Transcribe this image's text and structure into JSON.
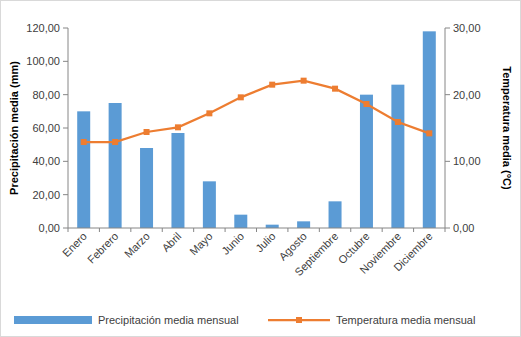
{
  "chart_data": {
    "type": "bar",
    "y_label": "Precipitación media (mm)",
    "y2_label": "Temperatura media (°C)",
    "categories": [
      "Enero",
      "Febrero",
      "Marzo",
      "Abril",
      "Mayo",
      "Junio",
      "Julio",
      "Agosto",
      "Septiembre",
      "Octubre",
      "Noviembre",
      "Diciembre"
    ],
    "series": [
      {
        "name": "Precipitación media mensual",
        "type": "bar",
        "color": "#5b9bd5",
        "values": [
          70,
          75,
          48,
          57,
          28,
          8,
          2,
          4,
          16,
          80,
          86,
          118
        ]
      },
      {
        "name": "Temperatura media mensual",
        "type": "line",
        "color": "#ed7d31",
        "marker": "square",
        "axis": "y2",
        "values": [
          12.9,
          12.9,
          14.4,
          15.1,
          17.2,
          19.6,
          21.5,
          22.1,
          20.9,
          18.6,
          15.9,
          14.2
        ]
      }
    ],
    "ylim": [
      0,
      120
    ],
    "yticks": [
      {
        "value": 0,
        "label": "0,00"
      },
      {
        "value": 20,
        "label": "20,00"
      },
      {
        "value": 40,
        "label": "40,00"
      },
      {
        "value": 60,
        "label": "60,00"
      },
      {
        "value": 80,
        "label": "80,00"
      },
      {
        "value": 100,
        "label": "100,00"
      },
      {
        "value": 120,
        "label": "120,00"
      }
    ],
    "y2lim": [
      0,
      30
    ],
    "y2ticks": [
      {
        "value": 0,
        "label": "0,00"
      },
      {
        "value": 10,
        "label": "10,00"
      },
      {
        "value": 20,
        "label": "20,00"
      },
      {
        "value": 30,
        "label": "30,00"
      }
    ],
    "grid": false,
    "legend": "bottom"
  }
}
